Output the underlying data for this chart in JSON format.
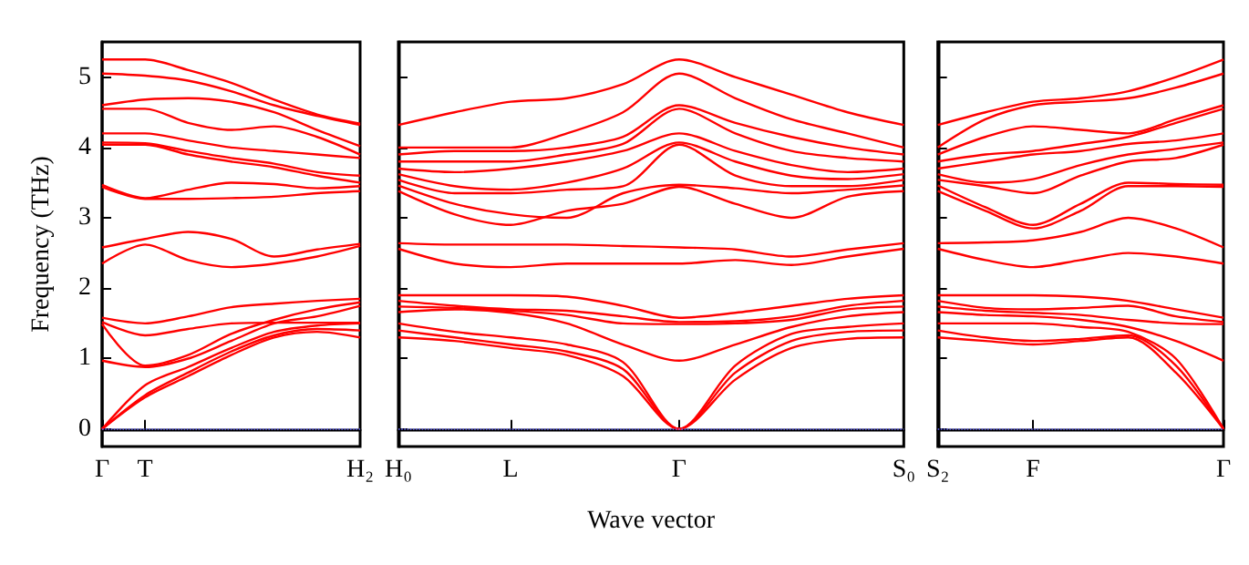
{
  "chart_data": [
    {
      "type": "line",
      "ylabel": "Frequency (THz)",
      "categories": [
        "Γ",
        "T",
        null,
        null,
        null,
        null,
        "H₂"
      ],
      "ylim": [
        -0.25,
        5.5
      ],
      "yticks": [
        0,
        1,
        2,
        3,
        4,
        5
      ],
      "grid": false,
      "marker": "none",
      "line_style": "solid",
      "ref_lines": [
        {
          "axis": "y",
          "value": 0,
          "color": "#6666ff",
          "line_style": "dotted"
        }
      ],
      "series": [
        {
          "color": "#ff0000",
          "values": [
            0,
            0.45,
            0.75,
            1.05,
            1.3,
            1.38,
            1.3
          ]
        },
        {
          "color": "#ff0000",
          "values": [
            0,
            0.48,
            0.8,
            1.1,
            1.33,
            1.42,
            1.4
          ]
        },
        {
          "color": "#ff0000",
          "values": [
            0,
            0.62,
            0.88,
            1.15,
            1.38,
            1.47,
            1.5
          ]
        },
        {
          "color": "#ff0000",
          "values": [
            0.97,
            0.88,
            1.0,
            1.25,
            1.5,
            1.6,
            1.75
          ]
        },
        {
          "color": "#ff0000",
          "values": [
            1.49,
            0.9,
            1.05,
            1.35,
            1.55,
            1.7,
            1.8
          ]
        },
        {
          "color": "#ff0000",
          "values": [
            1.52,
            1.33,
            1.42,
            1.5,
            1.51,
            1.51,
            1.51
          ]
        },
        {
          "color": "#ff0000",
          "values": [
            1.58,
            1.5,
            1.6,
            1.73,
            1.78,
            1.82,
            1.85
          ]
        },
        {
          "color": "#ff0000",
          "values": [
            2.35,
            2.62,
            2.4,
            2.3,
            2.35,
            2.45,
            2.6
          ]
        },
        {
          "color": "#ff0000",
          "values": [
            2.58,
            2.7,
            2.8,
            2.7,
            2.45,
            2.55,
            2.63
          ]
        },
        {
          "color": "#ff0000",
          "values": [
            3.44,
            3.27,
            3.27,
            3.28,
            3.3,
            3.35,
            3.38
          ]
        },
        {
          "color": "#ff0000",
          "values": [
            3.47,
            3.28,
            3.4,
            3.5,
            3.48,
            3.42,
            3.45
          ]
        },
        {
          "color": "#ff0000",
          "values": [
            4.04,
            4.04,
            3.9,
            3.8,
            3.72,
            3.6,
            3.5
          ]
        },
        {
          "color": "#ff0000",
          "values": [
            4.07,
            4.06,
            3.95,
            3.85,
            3.77,
            3.65,
            3.6
          ]
        },
        {
          "color": "#ff0000",
          "values": [
            4.2,
            4.2,
            4.1,
            4.0,
            3.95,
            3.9,
            3.85
          ]
        },
        {
          "color": "#ff0000",
          "values": [
            4.55,
            4.55,
            4.35,
            4.25,
            4.3,
            4.15,
            3.9
          ]
        },
        {
          "color": "#ff0000",
          "values": [
            4.6,
            4.68,
            4.7,
            4.65,
            4.5,
            4.25,
            4.02
          ]
        },
        {
          "color": "#ff0000",
          "values": [
            5.05,
            5.02,
            4.95,
            4.8,
            4.6,
            4.45,
            4.32
          ]
        },
        {
          "color": "#ff0000",
          "values": [
            5.25,
            5.25,
            5.1,
            4.92,
            4.68,
            4.47,
            4.34
          ]
        }
      ]
    },
    {
      "type": "line",
      "xlabel": "Wave vector",
      "categories": [
        "H₀",
        null,
        "L",
        null,
        null,
        "Γ",
        null,
        null,
        null,
        "S₀"
      ],
      "ylim": [
        -0.25,
        5.5
      ],
      "yticks": [
        0,
        1,
        2,
        3,
        4,
        5
      ],
      "tick_labels": "x",
      "grid": false,
      "marker": "none",
      "line_style": "solid",
      "ref_lines": [
        {
          "axis": "y",
          "value": 0,
          "color": "#6666ff",
          "line_style": "dotted"
        }
      ],
      "series": [
        {
          "color": "#ff0000",
          "values": [
            1.3,
            1.25,
            1.15,
            1.05,
            0.75,
            0,
            0.7,
            1.15,
            1.28,
            1.3
          ]
        },
        {
          "color": "#ff0000",
          "values": [
            1.4,
            1.3,
            1.2,
            1.1,
            0.85,
            0,
            0.8,
            1.25,
            1.38,
            1.4
          ]
        },
        {
          "color": "#ff0000",
          "values": [
            1.5,
            1.38,
            1.3,
            1.2,
            0.95,
            0,
            0.9,
            1.35,
            1.45,
            1.5
          ]
        },
        {
          "color": "#ff0000",
          "values": [
            1.66,
            1.7,
            1.65,
            1.5,
            1.2,
            0.97,
            1.2,
            1.45,
            1.6,
            1.66
          ]
        },
        {
          "color": "#ff0000",
          "values": [
            1.74,
            1.72,
            1.68,
            1.62,
            1.5,
            1.49,
            1.5,
            1.55,
            1.7,
            1.74
          ]
        },
        {
          "color": "#ff0000",
          "values": [
            1.82,
            1.75,
            1.7,
            1.68,
            1.6,
            1.52,
            1.53,
            1.6,
            1.75,
            1.82
          ]
        },
        {
          "color": "#ff0000",
          "values": [
            1.9,
            1.9,
            1.9,
            1.88,
            1.75,
            1.58,
            1.65,
            1.75,
            1.85,
            1.9
          ]
        },
        {
          "color": "#ff0000",
          "values": [
            2.56,
            2.35,
            2.3,
            2.35,
            2.35,
            2.35,
            2.4,
            2.33,
            2.45,
            2.56
          ]
        },
        {
          "color": "#ff0000",
          "values": [
            2.64,
            2.62,
            2.62,
            2.62,
            2.6,
            2.58,
            2.55,
            2.45,
            2.55,
            2.64
          ]
        },
        {
          "color": "#ff0000",
          "values": [
            3.38,
            3.05,
            2.9,
            3.1,
            3.2,
            3.44,
            3.2,
            3.0,
            3.3,
            3.38
          ]
        },
        {
          "color": "#ff0000",
          "values": [
            3.46,
            3.2,
            3.05,
            3.0,
            3.35,
            3.47,
            3.42,
            3.35,
            3.4,
            3.46
          ]
        },
        {
          "color": "#ff0000",
          "values": [
            3.54,
            3.35,
            3.35,
            3.4,
            3.45,
            4.04,
            3.6,
            3.45,
            3.45,
            3.54
          ]
        },
        {
          "color": "#ff0000",
          "values": [
            3.62,
            3.45,
            3.4,
            3.5,
            3.7,
            4.07,
            3.8,
            3.6,
            3.55,
            3.62
          ]
        },
        {
          "color": "#ff0000",
          "values": [
            3.7,
            3.65,
            3.7,
            3.8,
            3.95,
            4.2,
            3.95,
            3.75,
            3.65,
            3.7
          ]
        },
        {
          "color": "#ff0000",
          "values": [
            3.8,
            3.8,
            3.8,
            3.9,
            4.05,
            4.55,
            4.2,
            3.95,
            3.85,
            3.8
          ]
        },
        {
          "color": "#ff0000",
          "values": [
            3.9,
            3.95,
            3.95,
            4.0,
            4.15,
            4.6,
            4.35,
            4.15,
            4.0,
            3.9
          ]
        },
        {
          "color": "#ff0000",
          "values": [
            4.0,
            4.0,
            4.0,
            4.2,
            4.5,
            5.05,
            4.7,
            4.4,
            4.2,
            4.0
          ]
        },
        {
          "color": "#ff0000",
          "values": [
            4.32,
            4.5,
            4.65,
            4.7,
            4.9,
            5.25,
            5.0,
            4.75,
            4.5,
            4.32
          ]
        }
      ]
    },
    {
      "type": "line",
      "categories": [
        "S₂",
        null,
        "F",
        null,
        null,
        null,
        "Γ"
      ],
      "ylim": [
        -0.25,
        5.5
      ],
      "yticks": [
        0,
        1,
        2,
        3,
        4,
        5
      ],
      "tick_labels": "x",
      "grid": false,
      "marker": "none",
      "line_style": "solid",
      "ref_lines": [
        {
          "axis": "y",
          "value": 0,
          "color": "#6666ff",
          "line_style": "dotted"
        }
      ],
      "series": [
        {
          "color": "#ff0000",
          "values": [
            1.3,
            1.25,
            1.2,
            1.25,
            1.3,
            0.8,
            0
          ]
        },
        {
          "color": "#ff0000",
          "values": [
            1.4,
            1.3,
            1.25,
            1.28,
            1.33,
            0.9,
            0
          ]
        },
        {
          "color": "#ff0000",
          "values": [
            1.5,
            1.5,
            1.5,
            1.45,
            1.38,
            1.0,
            0
          ]
        },
        {
          "color": "#ff0000",
          "values": [
            1.66,
            1.62,
            1.6,
            1.55,
            1.45,
            1.25,
            0.97
          ]
        },
        {
          "color": "#ff0000",
          "values": [
            1.74,
            1.68,
            1.65,
            1.62,
            1.55,
            1.5,
            1.49
          ]
        },
        {
          "color": "#ff0000",
          "values": [
            1.82,
            1.72,
            1.7,
            1.72,
            1.75,
            1.6,
            1.52
          ]
        },
        {
          "color": "#ff0000",
          "values": [
            1.9,
            1.9,
            1.9,
            1.88,
            1.82,
            1.7,
            1.58
          ]
        },
        {
          "color": "#ff0000",
          "values": [
            2.56,
            2.4,
            2.3,
            2.4,
            2.5,
            2.45,
            2.35
          ]
        },
        {
          "color": "#ff0000",
          "values": [
            2.64,
            2.65,
            2.68,
            2.8,
            3.0,
            2.85,
            2.58
          ]
        },
        {
          "color": "#ff0000",
          "values": [
            3.38,
            3.1,
            2.85,
            3.1,
            3.45,
            3.45,
            3.44
          ]
        },
        {
          "color": "#ff0000",
          "values": [
            3.46,
            3.15,
            2.9,
            3.2,
            3.5,
            3.48,
            3.47
          ]
        },
        {
          "color": "#ff0000",
          "values": [
            3.54,
            3.45,
            3.35,
            3.6,
            3.8,
            3.85,
            4.04
          ]
        },
        {
          "color": "#ff0000",
          "values": [
            3.62,
            3.5,
            3.55,
            3.75,
            3.9,
            3.98,
            4.07
          ]
        },
        {
          "color": "#ff0000",
          "values": [
            3.7,
            3.8,
            3.9,
            3.95,
            4.05,
            4.1,
            4.2
          ]
        },
        {
          "color": "#ff0000",
          "values": [
            3.8,
            3.9,
            3.95,
            4.05,
            4.15,
            4.35,
            4.55
          ]
        },
        {
          "color": "#ff0000",
          "values": [
            3.9,
            4.15,
            4.3,
            4.25,
            4.2,
            4.4,
            4.6
          ]
        },
        {
          "color": "#ff0000",
          "values": [
            4.0,
            4.4,
            4.6,
            4.65,
            4.7,
            4.85,
            5.05
          ]
        },
        {
          "color": "#ff0000",
          "values": [
            4.32,
            4.5,
            4.65,
            4.7,
            4.8,
            5.0,
            5.25
          ]
        }
      ]
    }
  ]
}
